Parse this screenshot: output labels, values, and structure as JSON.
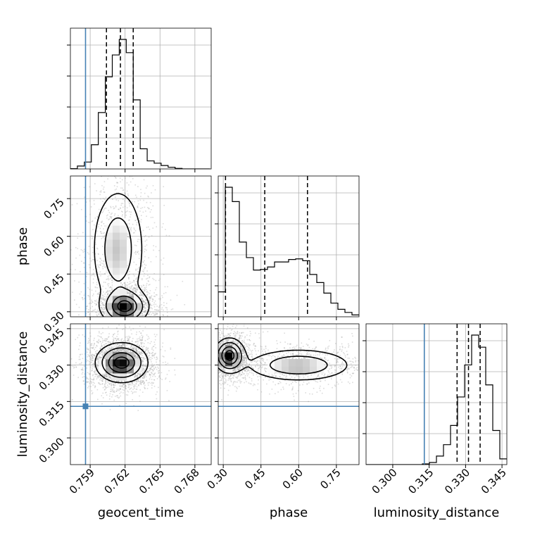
{
  "chart_data": {
    "type": "corner",
    "parameters": [
      "geocent_time",
      "phase",
      "luminosity_distance"
    ],
    "ranges": {
      "geocent_time": [
        0.7573,
        0.7694
      ],
      "phase": [
        0.28,
        0.84
      ],
      "luminosity_distance": [
        0.289,
        0.347
      ]
    },
    "ticks": {
      "geocent_time": [
        0.759,
        0.762,
        0.765,
        0.768
      ],
      "phase": [
        0.3,
        0.45,
        0.6,
        0.75
      ],
      "luminosity_distance": [
        0.3,
        0.315,
        0.33,
        0.345
      ]
    },
    "tick_labels": {
      "geocent_time": [
        "0.759",
        "0.762",
        "0.765",
        "0.768"
      ],
      "phase": [
        "0.30",
        "0.45",
        "0.60",
        "0.75"
      ],
      "luminosity_distance": [
        "0.300",
        "0.315",
        "0.330",
        "0.345"
      ]
    },
    "truths": {
      "geocent_time": 0.7586,
      "luminosity_distance": 0.313
    },
    "truth_color": "#4682b4",
    "grid": true,
    "histograms": {
      "geocent_time": {
        "quantiles": [
          0.7604,
          0.7616,
          0.7627
        ],
        "edges_start": 0.7573,
        "bin_width": 0.0006,
        "counts": [
          0.5,
          5,
          12,
          42,
          98,
          160,
          198,
          225,
          202,
          120,
          35,
          14,
          10,
          6,
          3,
          1,
          0,
          0,
          0,
          0
        ]
      },
      "phase": {
        "quantiles": [
          0.309,
          0.465,
          0.635
        ],
        "edges_start": 0.28,
        "bin_width": 0.028,
        "counts": [
          40,
          208,
          185,
          120,
          95,
          75,
          76,
          80,
          88,
          88,
          92,
          93,
          90,
          68,
          55,
          38,
          22,
          12,
          7,
          3
        ]
      },
      "luminosity_distance": {
        "quantiles": [
          0.3265,
          0.3312,
          0.336
        ],
        "edges_start": 0.289,
        "bin_width": 0.0029,
        "counts": [
          0,
          0,
          0,
          0,
          0,
          0,
          0,
          0,
          1,
          3,
          12,
          28,
          55,
          95,
          140,
          182,
          165,
          112,
          48,
          8
        ]
      }
    },
    "density_2d": {
      "phase_vs_geocent_time": {
        "x": "geocent_time",
        "y": "phase",
        "components": [
          {
            "center": [
              0.762,
              0.32
            ],
            "sigma": [
              0.001,
              0.035
            ],
            "weight": 1.0
          },
          {
            "center": [
              0.7614,
              0.55
            ],
            "sigma": [
              0.0012,
              0.13
            ],
            "weight": 0.55
          }
        ]
      },
      "luminosity_distance_vs_geocent_time": {
        "x": "geocent_time",
        "y": "luminosity_distance",
        "components": [
          {
            "center": [
              0.7617,
              0.331
            ],
            "sigma": [
              0.0011,
              0.004
            ],
            "weight": 1.0
          }
        ]
      },
      "luminosity_distance_vs_phase": {
        "x": "phase",
        "y": "luminosity_distance",
        "components": [
          {
            "center": [
              0.325,
              0.334
            ],
            "sigma": [
              0.03,
              0.0035
            ],
            "weight": 1.0
          },
          {
            "center": [
              0.6,
              0.33
            ],
            "sigma": [
              0.11,
              0.0035
            ],
            "weight": 0.55
          }
        ]
      }
    }
  }
}
